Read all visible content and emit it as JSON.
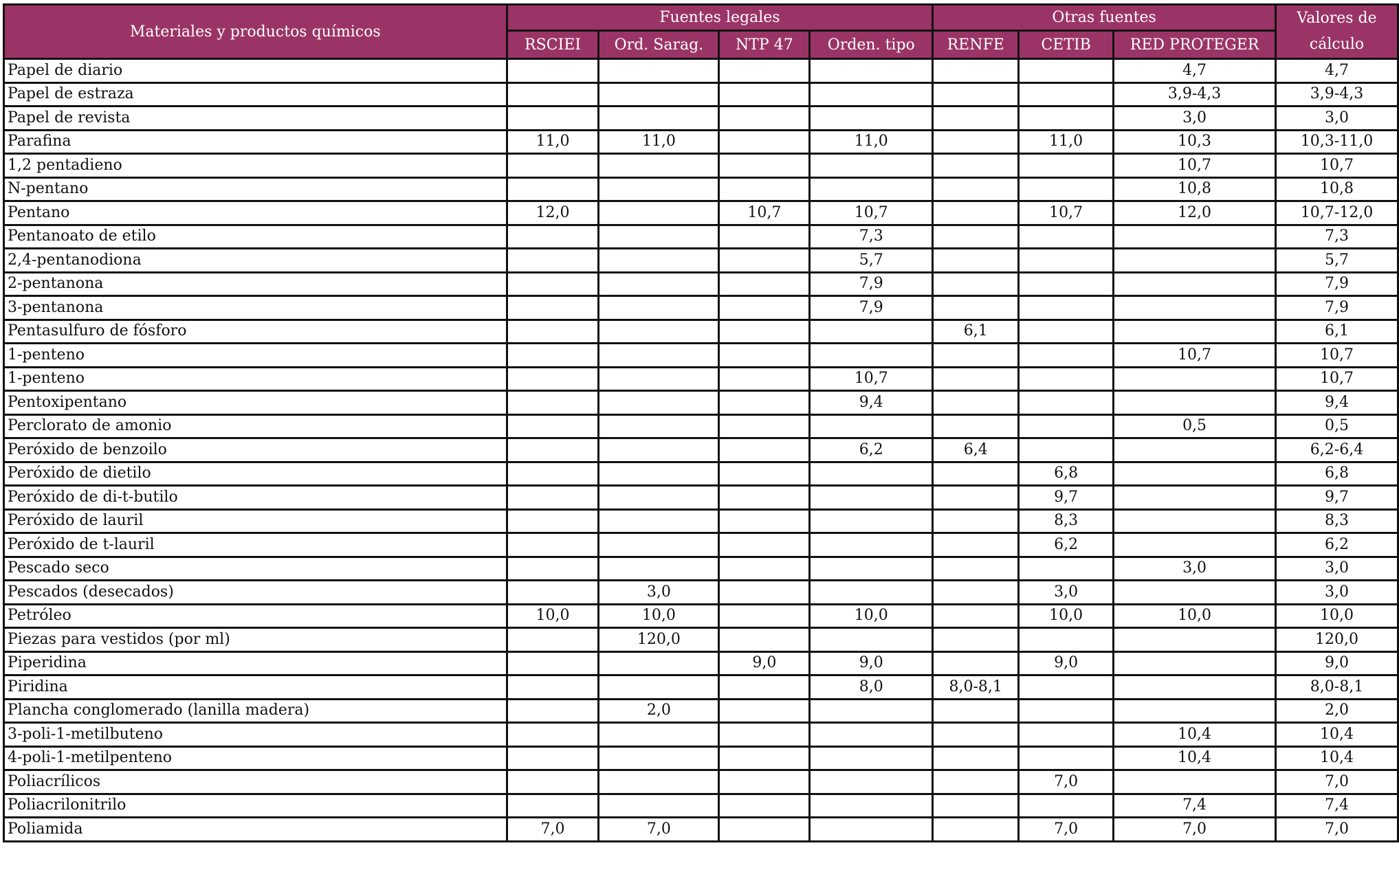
{
  "header": {
    "materials": "Materiales y productos químicos",
    "group_legal": "Fuentes legales",
    "group_other": "Otras fuentes",
    "calc_line1": "Valores de",
    "calc_line2": "cálculo",
    "columns": [
      "RSCIEI",
      "Ord. Sarag.",
      "NTP 47",
      "Orden. tipo",
      "RENFE",
      "CETIB",
      "RED PROTEGER"
    ]
  },
  "colors": {
    "header_bg": "#9b3466",
    "header_text": "#ffffff"
  },
  "rows": [
    {
      "name": "Papel de diario",
      "v": [
        "",
        "",
        "",
        "",
        "",
        "",
        "4,7",
        "4,7"
      ]
    },
    {
      "name": "Papel de estraza",
      "v": [
        "",
        "",
        "",
        "",
        "",
        "",
        "3,9-4,3",
        "3,9-4,3"
      ]
    },
    {
      "name": "Papel de revista",
      "v": [
        "",
        "",
        "",
        "",
        "",
        "",
        "3,0",
        "3,0"
      ]
    },
    {
      "name": "Parafina",
      "v": [
        "11,0",
        "11,0",
        "",
        "11,0",
        "",
        "11,0",
        "10,3",
        "10,3-11,0"
      ]
    },
    {
      "name": "1,2 pentadieno",
      "v": [
        "",
        "",
        "",
        "",
        "",
        "",
        "10,7",
        "10,7"
      ]
    },
    {
      "name": "N-pentano",
      "v": [
        "",
        "",
        "",
        "",
        "",
        "",
        "10,8",
        "10,8"
      ]
    },
    {
      "name": "Pentano",
      "v": [
        "12,0",
        "",
        "10,7",
        "10,7",
        "",
        "10,7",
        "12,0",
        "10,7-12,0"
      ]
    },
    {
      "name": "Pentanoato de etilo",
      "v": [
        "",
        "",
        "",
        "7,3",
        "",
        "",
        "",
        "7,3"
      ]
    },
    {
      "name": "2,4-pentanodiona",
      "v": [
        "",
        "",
        "",
        "5,7",
        "",
        "",
        "",
        "5,7"
      ]
    },
    {
      "name": "2-pentanona",
      "v": [
        "",
        "",
        "",
        "7,9",
        "",
        "",
        "",
        "7,9"
      ]
    },
    {
      "name": "3-pentanona",
      "v": [
        "",
        "",
        "",
        "7,9",
        "",
        "",
        "",
        "7,9"
      ]
    },
    {
      "name": "Pentasulfuro de fósforo",
      "v": [
        "",
        "",
        "",
        "",
        "6,1",
        "",
        "",
        "6,1"
      ]
    },
    {
      "name": "1-penteno",
      "v": [
        "",
        "",
        "",
        "",
        "",
        "",
        "10,7",
        "10,7"
      ]
    },
    {
      "name": "1-penteno",
      "v": [
        "",
        "",
        "",
        "10,7",
        "",
        "",
        "",
        "10,7"
      ]
    },
    {
      "name": "Pentoxipentano",
      "v": [
        "",
        "",
        "",
        "9,4",
        "",
        "",
        "",
        "9,4"
      ]
    },
    {
      "name": "Perclorato de amonio",
      "v": [
        "",
        "",
        "",
        "",
        "",
        "",
        "0,5",
        "0,5"
      ]
    },
    {
      "name": "Peróxido de benzoilo",
      "v": [
        "",
        "",
        "",
        "6,2",
        "6,4",
        "",
        "",
        "6,2-6,4"
      ]
    },
    {
      "name": "Peróxido de dietilo",
      "v": [
        "",
        "",
        "",
        "",
        "",
        "6,8",
        "",
        "6,8"
      ]
    },
    {
      "name": "Peróxido de di-t-butilo",
      "v": [
        "",
        "",
        "",
        "",
        "",
        "9,7",
        "",
        "9,7"
      ]
    },
    {
      "name": "Peróxido de lauril",
      "v": [
        "",
        "",
        "",
        "",
        "",
        "8,3",
        "",
        "8,3"
      ]
    },
    {
      "name": "Peróxido de t-lauril",
      "v": [
        "",
        "",
        "",
        "",
        "",
        "6,2",
        "",
        "6,2"
      ]
    },
    {
      "name": "Pescado seco",
      "v": [
        "",
        "",
        "",
        "",
        "",
        "",
        "3,0",
        "3,0"
      ]
    },
    {
      "name": "Pescados (desecados)",
      "v": [
        "",
        "3,0",
        "",
        "",
        "",
        "3,0",
        "",
        "3,0"
      ]
    },
    {
      "name": "Petróleo",
      "v": [
        "10,0",
        "10,0",
        "",
        "10,0",
        "",
        "10,0",
        "10,0",
        "10,0"
      ]
    },
    {
      "name": "Piezas para vestidos (por ml)",
      "v": [
        "",
        "120,0",
        "",
        "",
        "",
        "",
        "",
        "120,0"
      ]
    },
    {
      "name": "Piperidina",
      "v": [
        "",
        "",
        "9,0",
        "9,0",
        "",
        "9,0",
        "",
        "9,0"
      ]
    },
    {
      "name": "Piridina",
      "v": [
        "",
        "",
        "",
        "8,0",
        "8,0-8,1",
        "",
        "",
        "8,0-8,1"
      ]
    },
    {
      "name": "Plancha conglomerado (lanilla madera)",
      "v": [
        "",
        "2,0",
        "",
        "",
        "",
        "",
        "",
        "2,0"
      ]
    },
    {
      "name": "3-poli-1-metilbuteno",
      "v": [
        "",
        "",
        "",
        "",
        "",
        "",
        "10,4",
        "10,4"
      ]
    },
    {
      "name": "4-poli-1-metilpenteno",
      "v": [
        "",
        "",
        "",
        "",
        "",
        "",
        "10,4",
        "10,4"
      ]
    },
    {
      "name": "Poliacrílicos",
      "v": [
        "",
        "",
        "",
        "",
        "",
        "7,0",
        "",
        "7,0"
      ]
    },
    {
      "name": "Poliacrilonitrilo",
      "v": [
        "",
        "",
        "",
        "",
        "",
        "",
        "7,4",
        "7,4"
      ]
    },
    {
      "name": "Poliamida",
      "v": [
        "7,0",
        "7,0",
        "",
        "",
        "",
        "7,0",
        "7,0",
        "7,0"
      ]
    }
  ]
}
